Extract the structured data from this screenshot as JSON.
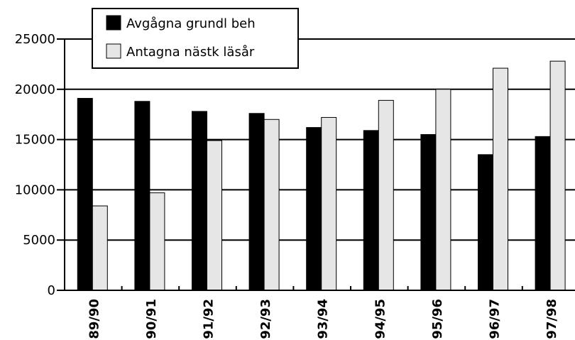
{
  "chart_data": {
    "type": "bar",
    "categories": [
      "89/90",
      "90/91",
      "91/92",
      "92/93",
      "93/94",
      "94/95",
      "95/96",
      "96/97",
      "97/98"
    ],
    "series": [
      {
        "name": "Avgågna grundl beh",
        "color": "#000000",
        "values": [
          19100,
          18800,
          17800,
          17600,
          16200,
          15900,
          15500,
          13500,
          15300
        ]
      },
      {
        "name": "Antagna nästk läsår",
        "color": "#e6e6e6",
        "values": [
          8400,
          9700,
          14900,
          17000,
          17200,
          18900,
          20000,
          22100,
          22800
        ]
      }
    ],
    "ylim": [
      0,
      25000
    ],
    "yticks": [
      0,
      5000,
      10000,
      15000,
      20000,
      25000
    ],
    "grid": true,
    "legend": "top-left"
  }
}
